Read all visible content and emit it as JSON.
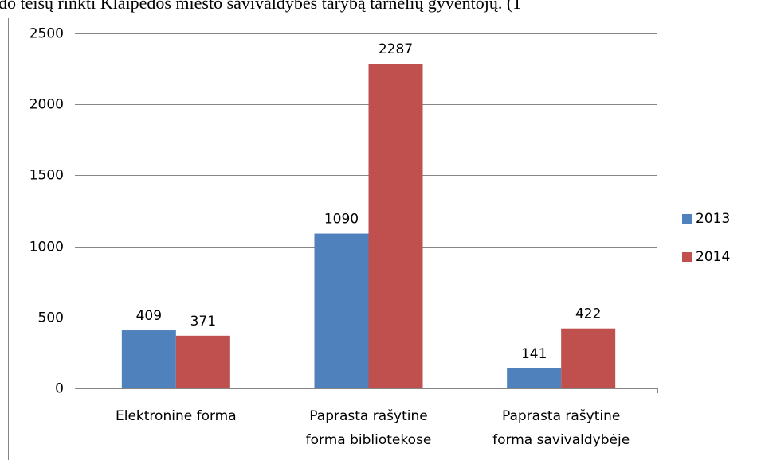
{
  "chart_data": {
    "type": "bar",
    "title": "do teisų rinkti Klaipėdos miesto savivaldybės tarybą tarnelių gyventojų. (1",
    "categories": [
      [
        "Elektronine forma"
      ],
      [
        "Paprasta rašytine",
        "forma bibliotekose"
      ],
      [
        "Paprasta rašytine",
        "forma savivaldybėje"
      ]
    ],
    "series": [
      {
        "name": "2013",
        "color": "#4f81bd",
        "values": [
          409,
          1090,
          141
        ]
      },
      {
        "name": "2014",
        "color": "#c0504d",
        "values": [
          371,
          2287,
          422
        ]
      }
    ],
    "ylim": [
      0,
      2500
    ],
    "yticks": [
      0,
      500,
      1000,
      1500,
      2000,
      2500
    ],
    "grid": true,
    "legend": "right"
  }
}
